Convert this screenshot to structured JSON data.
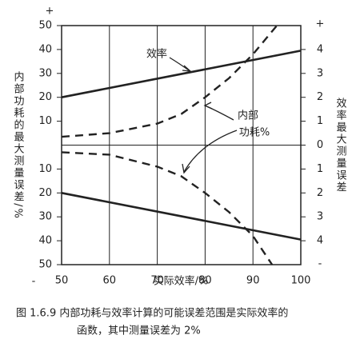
{
  "chart_data": {
    "type": "line",
    "x_label": "实际效率/%",
    "y_label": "内部功耗的最大测量误差/%",
    "y2_label": "效率最大测量误差",
    "signs": {
      "y_top": "+",
      "y_bottom": "-",
      "y2_top": "+",
      "y2_bottom": "-"
    },
    "annotations": [
      "效率",
      "内部",
      "功耗%"
    ],
    "caption": [
      "图 1.6.9   内部功耗与效率计算的可能误差范围是实际效率的",
      "函数，其中测量误差为 2%"
    ],
    "xlim": [
      50,
      100
    ],
    "xticks": [
      50,
      60,
      70,
      80,
      90,
      100
    ],
    "ylim": [
      -50,
      50
    ],
    "yticks": [
      50,
      40,
      30,
      20,
      10,
      {
        "value": -10,
        "label": "10"
      },
      {
        "value": -20,
        "label": "20"
      },
      {
        "value": -30,
        "label": "30"
      },
      {
        "value": -40,
        "label": "40"
      },
      {
        "value": -50,
        "label": "50"
      }
    ],
    "y2lim": [
      -5,
      5
    ],
    "y2ticks": [
      4,
      3,
      2,
      1,
      0,
      {
        "value": -1,
        "label": "1"
      },
      {
        "value": -2,
        "label": "2"
      },
      {
        "value": -3,
        "label": "3"
      },
      {
        "value": -4,
        "label": "4"
      }
    ],
    "grid": true,
    "series": [
      {
        "color": "#222222",
        "dash": false,
        "axis": "y2",
        "x": [
          50,
          100
        ],
        "values": [
          2,
          3.95
        ]
      },
      {
        "color": "#222222",
        "dash": false,
        "axis": "y2",
        "x": [
          50,
          100
        ],
        "values": [
          -2,
          -3.95
        ]
      },
      {
        "color": "#222222",
        "dash": true,
        "axis": "y",
        "x": [
          50,
          60,
          70,
          75,
          80,
          85,
          90,
          95
        ],
        "values": [
          3.5,
          5,
          9,
          13,
          20,
          28,
          38,
          50
        ]
      },
      {
        "color": "#222222",
        "dash": true,
        "axis": "y",
        "x": [
          50,
          60,
          70,
          75,
          80,
          85,
          90,
          94
        ],
        "values": [
          -3,
          -4,
          -9,
          -13,
          -20,
          -28,
          -38,
          -50
        ]
      }
    ]
  }
}
